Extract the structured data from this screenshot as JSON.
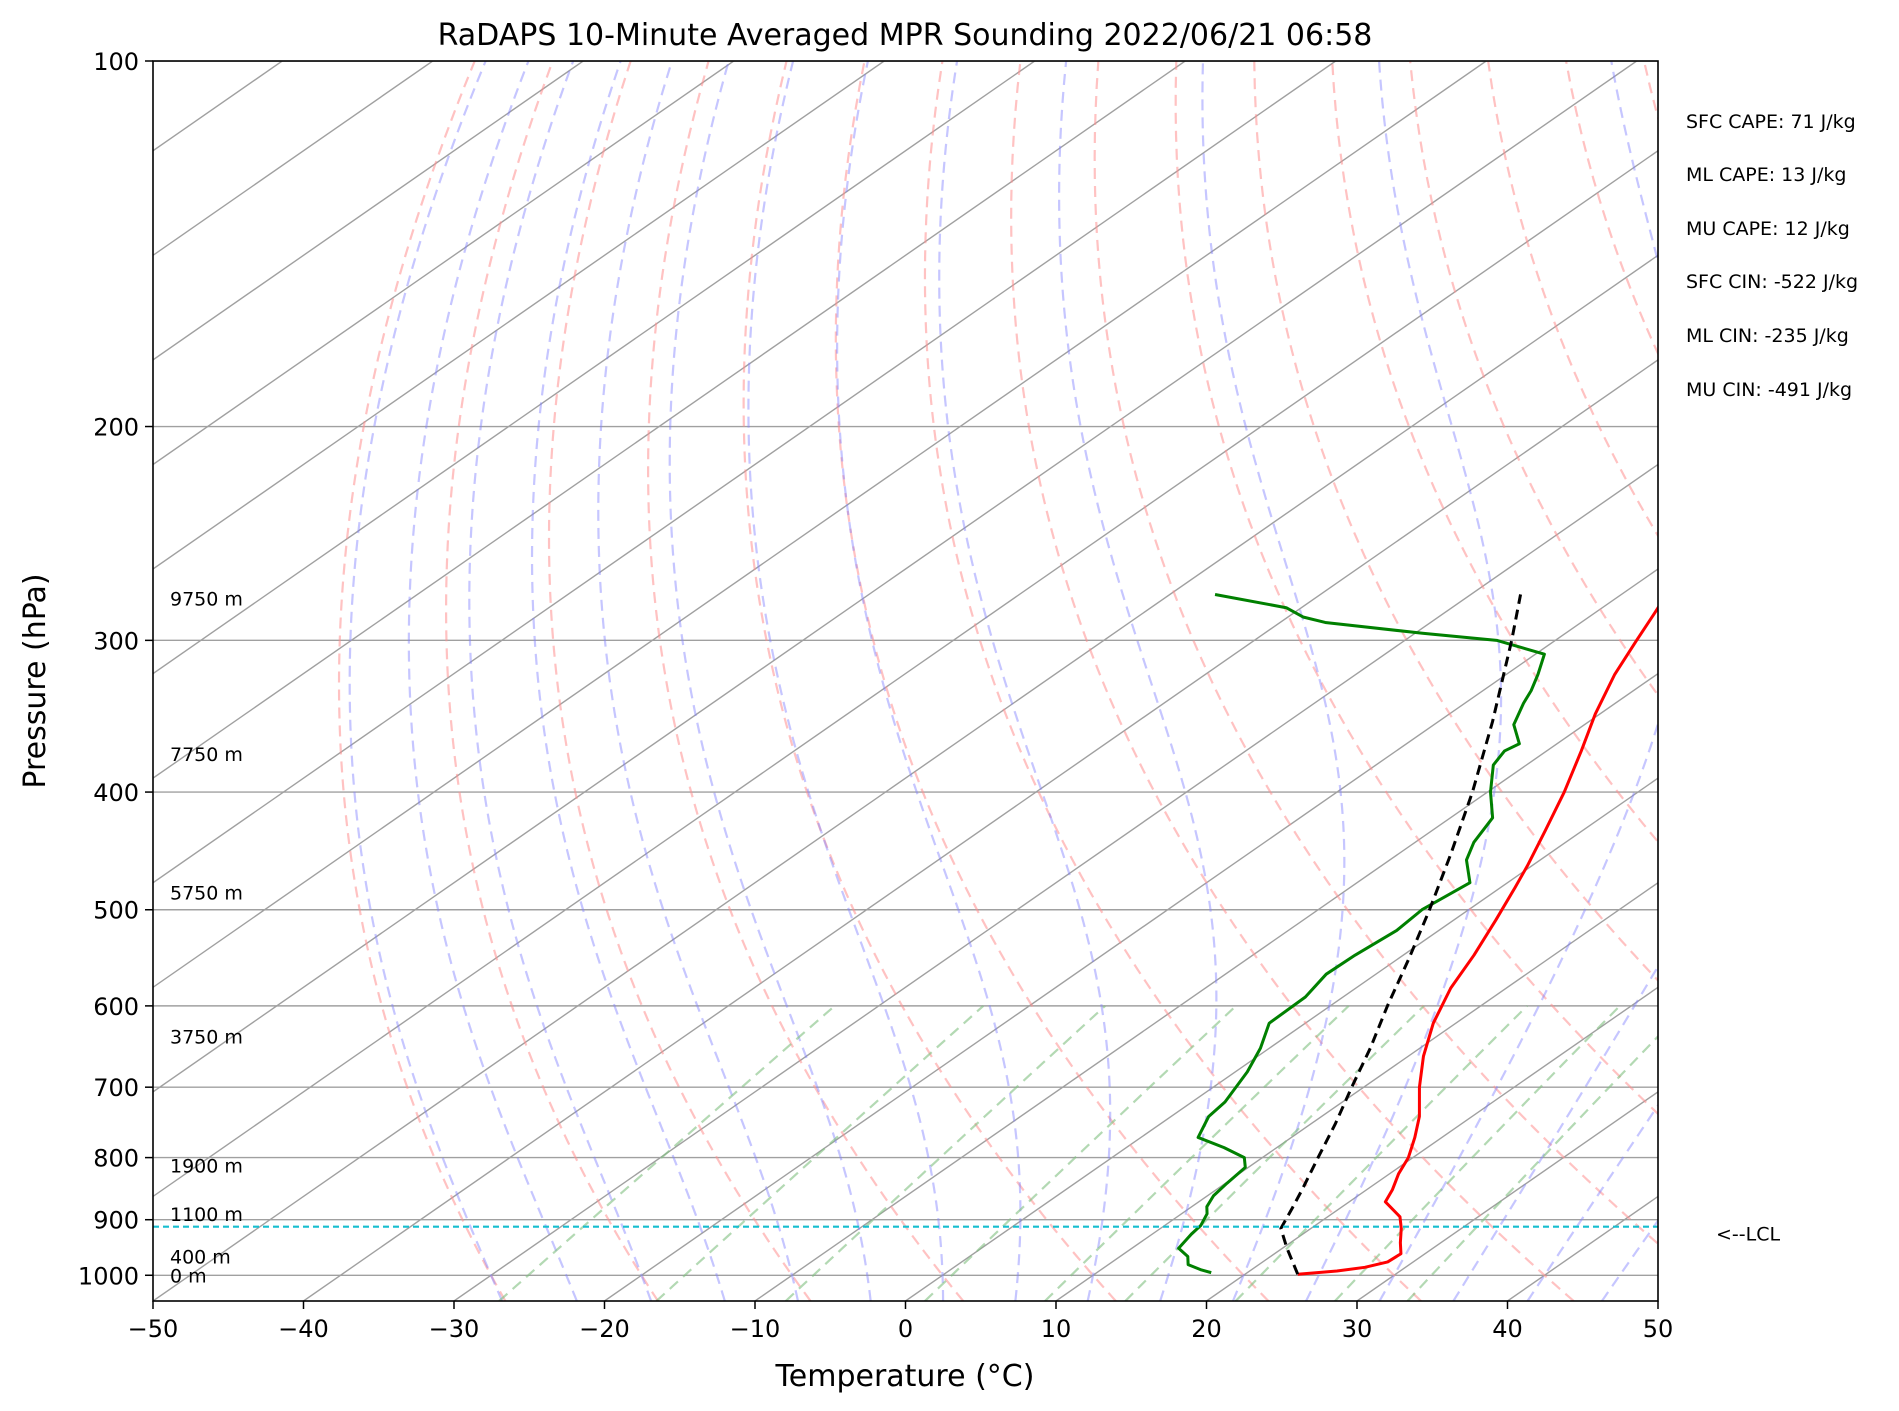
{
  "chart_data": {
    "type": "line",
    "chart_kind": "skew-T log-p sounding",
    "title": "RaDAPS 10-Minute Averaged MPR Sounding 2022/06/21 06:58",
    "xlabel": "Temperature (°C)",
    "ylabel": "Pressure (hPa)",
    "xlim": [
      -50,
      50
    ],
    "ylim": [
      1050,
      100
    ],
    "y_scale": "log",
    "x_ticks": [
      "−50",
      "−40",
      "−30",
      "−20",
      "−10",
      "0",
      "10",
      "20",
      "30",
      "40",
      "50"
    ],
    "y_ticks": [
      {
        "p": 100,
        "label": "100"
      },
      {
        "p": 200,
        "label": "200"
      },
      {
        "p": 300,
        "label": "300"
      },
      {
        "p": 400,
        "label": "400"
      },
      {
        "p": 500,
        "label": "500"
      },
      {
        "p": 600,
        "label": "600"
      },
      {
        "p": 700,
        "label": "700"
      },
      {
        "p": 800,
        "label": "800"
      },
      {
        "p": 900,
        "label": "900"
      },
      {
        "p": 1000,
        "label": "1000"
      }
    ],
    "grid": true,
    "colors": {
      "temperature": "#ff0000",
      "dewpoint": "#008000",
      "parcel": "#000000",
      "lcl": "#17becf",
      "isotherm": "#a0a0a0",
      "dry_adiabat": "#ff9090",
      "moist_adiabat": "#8080ff",
      "mixing_ratio": "#80c080"
    },
    "series": [
      {
        "name": "",
        "role": "temperature",
        "points": [
          {
            "p": 998,
            "t": 23.5
          },
          {
            "p": 992,
            "t": 25.8
          },
          {
            "p": 985,
            "t": 27.3
          },
          {
            "p": 975,
            "t": 28.3
          },
          {
            "p": 960,
            "t": 28.4
          },
          {
            "p": 940,
            "t": 27.3
          },
          {
            "p": 915,
            "t": 26.0
          },
          {
            "p": 895,
            "t": 24.8
          },
          {
            "p": 870,
            "t": 22.4
          },
          {
            "p": 850,
            "t": 21.7
          },
          {
            "p": 825,
            "t": 20.6
          },
          {
            "p": 800,
            "t": 19.7
          },
          {
            "p": 770,
            "t": 18.2
          },
          {
            "p": 740,
            "t": 16.5
          },
          {
            "p": 700,
            "t": 13.7
          },
          {
            "p": 660,
            "t": 11.0
          },
          {
            "p": 620,
            "t": 8.5
          },
          {
            "p": 580,
            "t": 6.3
          },
          {
            "p": 545,
            "t": 4.7
          },
          {
            "p": 510,
            "t": 2.8
          },
          {
            "p": 480,
            "t": 1.0
          },
          {
            "p": 460,
            "t": -0.3
          },
          {
            "p": 430,
            "t": -2.5
          },
          {
            "p": 400,
            "t": -4.9
          },
          {
            "p": 370,
            "t": -7.7
          },
          {
            "p": 345,
            "t": -10.3
          },
          {
            "p": 320,
            "t": -12.8
          },
          {
            "p": 300,
            "t": -14.6
          },
          {
            "p": 285,
            "t": -16.0
          },
          {
            "p": 275,
            "t": -17.0
          }
        ]
      },
      {
        "name": "",
        "role": "dewpoint",
        "points": [
          {
            "p": 995,
            "t": 17.6
          },
          {
            "p": 990,
            "t": 16.7
          },
          {
            "p": 980,
            "t": 15.3
          },
          {
            "p": 965,
            "t": 14.5
          },
          {
            "p": 950,
            "t": 13.1
          },
          {
            "p": 935,
            "t": 12.8
          },
          {
            "p": 925,
            "t": 12.6
          },
          {
            "p": 910,
            "t": 12.4
          },
          {
            "p": 890,
            "t": 11.7
          },
          {
            "p": 878,
            "t": 11.0
          },
          {
            "p": 860,
            "t": 10.4
          },
          {
            "p": 840,
            "t": 10.1
          },
          {
            "p": 815,
            "t": 9.8
          },
          {
            "p": 800,
            "t": 8.8
          },
          {
            "p": 785,
            "t": 6.5
          },
          {
            "p": 770,
            "t": 3.8
          },
          {
            "p": 740,
            "t": 2.5
          },
          {
            "p": 720,
            "t": 2.2
          },
          {
            "p": 680,
            "t": 0.8
          },
          {
            "p": 650,
            "t": -0.6
          },
          {
            "p": 620,
            "t": -2.4
          },
          {
            "p": 590,
            "t": -2.5
          },
          {
            "p": 565,
            "t": -3.3
          },
          {
            "p": 545,
            "t": -3.2
          },
          {
            "p": 520,
            "t": -2.8
          },
          {
            "p": 500,
            "t": -3.1
          },
          {
            "p": 475,
            "t": -2.5
          },
          {
            "p": 455,
            "t": -4.9
          },
          {
            "p": 440,
            "t": -6.1
          },
          {
            "p": 420,
            "t": -7.2
          },
          {
            "p": 400,
            "t": -9.8
          },
          {
            "p": 380,
            "t": -12.2
          },
          {
            "p": 370,
            "t": -12.8
          },
          {
            "p": 365,
            "t": -12.5
          },
          {
            "p": 352,
            "t": -14.7
          },
          {
            "p": 338,
            "t": -16.1
          },
          {
            "p": 330,
            "t": -16.8
          },
          {
            "p": 320,
            "t": -17.9
          },
          {
            "p": 308,
            "t": -19.4
          },
          {
            "p": 300,
            "t": -23.9
          },
          {
            "p": 296,
            "t": -29.5
          },
          {
            "p": 290,
            "t": -37.0
          },
          {
            "p": 287,
            "t": -39.0
          },
          {
            "p": 282,
            "t": -41.0
          },
          {
            "p": 275,
            "t": -47.0
          }
        ]
      },
      {
        "name": "",
        "role": "parcel",
        "dashed": true,
        "points": [
          {
            "p": 998,
            "t": 23.5
          },
          {
            "p": 950,
            "t": 20.3
          },
          {
            "p": 915,
            "t": 18.0
          },
          {
            "p": 880,
            "t": 16.8
          },
          {
            "p": 850,
            "t": 15.7
          },
          {
            "p": 800,
            "t": 13.7
          },
          {
            "p": 750,
            "t": 11.6
          },
          {
            "p": 700,
            "t": 9.2
          },
          {
            "p": 650,
            "t": 6.7
          },
          {
            "p": 600,
            "t": 3.8
          },
          {
            "p": 550,
            "t": 0.8
          },
          {
            "p": 500,
            "t": -2.6
          },
          {
            "p": 450,
            "t": -6.5
          },
          {
            "p": 400,
            "t": -11.0
          },
          {
            "p": 350,
            "t": -16.4
          },
          {
            "p": 300,
            "t": -22.9
          },
          {
            "p": 275,
            "t": -26.7
          }
        ]
      }
    ],
    "lcl": {
      "p": 912,
      "label": "<--LCL"
    },
    "height_labels": [
      {
        "p": 1000,
        "label": "0 m"
      },
      {
        "p": 965,
        "label": "400 m"
      },
      {
        "p": 890,
        "label": "1100 m"
      },
      {
        "p": 812,
        "label": "1900 m"
      },
      {
        "p": 636,
        "label": "3750 m"
      },
      {
        "p": 484,
        "label": "5750 m"
      },
      {
        "p": 372,
        "label": "7750 m"
      },
      {
        "p": 277,
        "label": "9750 m"
      }
    ],
    "annotations": [
      "SFC CAPE: 71 J/kg",
      "ML CAPE: 13 J/kg",
      "MU CAPE: 12 J/kg",
      "SFC CIN: -522 J/kg",
      "ML CIN: -235 J/kg",
      "MU CIN: -491 J/kg"
    ],
    "background_lines": {
      "isotherms_every_c": 10,
      "dry_adiabats_theta_c": [
        -30,
        -20,
        -10,
        0,
        10,
        20,
        30,
        40,
        50,
        60,
        70,
        80,
        90,
        100,
        110,
        120,
        130,
        140,
        150,
        160
      ],
      "moist_adiabats_c": [
        -30,
        -25,
        -20,
        -15,
        -10,
        -5,
        0,
        5,
        10,
        15,
        20,
        25,
        30,
        35,
        40,
        45
      ],
      "mixing_ratios_gkg": [
        0.4,
        1,
        2,
        4,
        7,
        10,
        16,
        24,
        32
      ],
      "mixing_ratio_top_hpa": 600
    }
  }
}
